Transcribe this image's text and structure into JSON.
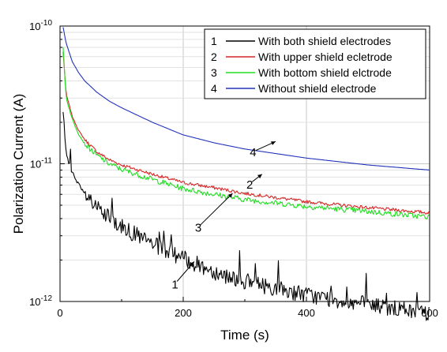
{
  "chart_data": {
    "type": "line",
    "xlabel": "Time (s)",
    "ylabel": "Polarization Current (A)",
    "xlim": [
      0,
      600
    ],
    "ylim": [
      1e-12,
      1e-10
    ],
    "yscale": "log",
    "x_ticks": [
      0,
      200,
      400,
      600
    ],
    "x_tick_labels": [
      "0",
      "200",
      "400",
      "600"
    ],
    "y_ticks": [
      1e-12,
      1e-11,
      1e-10
    ],
    "y_tick_labels": [
      {
        "base": "10",
        "exp": "-12"
      },
      {
        "base": "10",
        "exp": "-11"
      },
      {
        "base": "10",
        "exp": "-10"
      }
    ],
    "grid": true,
    "legend_position": "top-right",
    "series": [
      {
        "key": "1",
        "name": "With both shield electrodes",
        "color": "#000000",
        "x": [
          5,
          10,
          20,
          30,
          40,
          60,
          80,
          100,
          120,
          150,
          200,
          250,
          300,
          350,
          400,
          450,
          500,
          550,
          600
        ],
        "y": [
          2.4e-11,
          1.2e-11,
          8.5e-12,
          7e-12,
          6e-12,
          4.7e-12,
          4e-12,
          3.5e-12,
          3.1e-12,
          2.6e-12,
          2.05e-12,
          1.65e-12,
          1.4e-12,
          1.25e-12,
          1.12e-12,
          1.02e-12,
          9.5e-13,
          8.8e-13,
          8.2e-13
        ],
        "noise": 0.06
      },
      {
        "key": "2",
        "name": "With upper shield ecletrode",
        "color": "#d62728",
        "x": [
          5,
          10,
          20,
          30,
          40,
          60,
          80,
          100,
          150,
          200,
          250,
          300,
          400,
          500,
          600
        ],
        "y": [
          6.5e-11,
          3.2e-11,
          2.2e-11,
          1.75e-11,
          1.5e-11,
          1.22e-11,
          1.07e-11,
          9.8e-12,
          8.4e-12,
          7.3e-12,
          6.7e-12,
          6.1e-12,
          5.3e-12,
          4.8e-12,
          4.4e-12
        ],
        "noise": 0.012
      },
      {
        "key": "3",
        "name": "With bottom shield elctrode",
        "color": "#22dd22",
        "x": [
          5,
          10,
          20,
          30,
          40,
          60,
          80,
          100,
          150,
          200,
          250,
          300,
          400,
          500,
          600
        ],
        "y": [
          7e-11,
          3e-11,
          2.1e-11,
          1.65e-11,
          1.4e-11,
          1.15e-11,
          1e-11,
          9.1e-12,
          7.7e-12,
          6.6e-12,
          6e-12,
          5.5e-12,
          4.9e-12,
          4.5e-12,
          4.1e-12
        ],
        "noise": 0.02
      },
      {
        "key": "4",
        "name": "Without shield electrode",
        "color": "#2233bb",
        "x": [
          5,
          10,
          20,
          30,
          40,
          60,
          80,
          100,
          150,
          200,
          250,
          300,
          400,
          500,
          600
        ],
        "y": [
          9.8e-11,
          7.5e-11,
          5.5e-11,
          4.6e-11,
          4e-11,
          3.3e-11,
          2.85e-11,
          2.55e-11,
          2e-11,
          1.62e-11,
          1.42e-11,
          1.28e-11,
          1.1e-11,
          9.8e-12,
          9e-12
        ],
        "noise": 0.0
      }
    ],
    "annotations": [
      {
        "text": "1",
        "from": [
          190,
          1.4e-12
        ],
        "to": [
          218,
          1.95e-12
        ]
      },
      {
        "text": "2",
        "from": [
          312,
          7.4e-12
        ],
        "to": [
          328,
          8.4e-12
        ]
      },
      {
        "text": "3",
        "from": [
          228,
          3.6e-12
        ],
        "to": [
          280,
          6.1e-12
        ]
      },
      {
        "text": "4",
        "from": [
          318,
          1.25e-11
        ],
        "to": [
          350,
          1.45e-11
        ]
      }
    ]
  }
}
